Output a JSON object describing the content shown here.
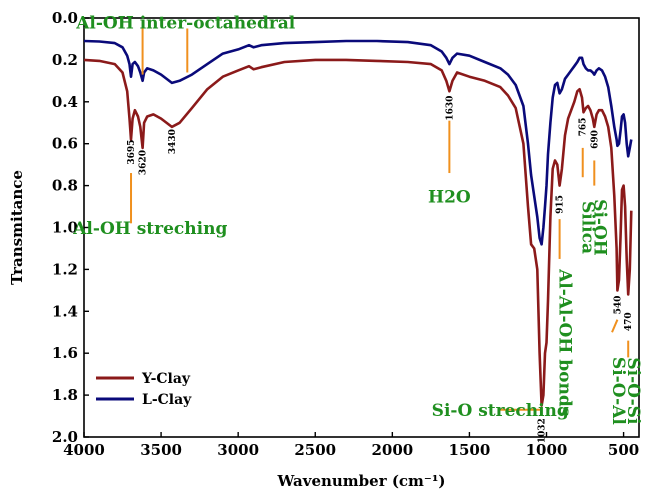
{
  "chart_data": {
    "type": "line",
    "xlabel": "Wavenumber (cm⁻¹)",
    "ylabel": "Transmitance",
    "xlim": [
      4000,
      400
    ],
    "ylim": [
      0.0,
      2.0
    ],
    "x_ticks": [
      4000,
      3500,
      3000,
      2500,
      2000,
      1500,
      1000,
      500
    ],
    "y_ticks": [
      "0.0",
      "0.2",
      "0.4",
      "0.6",
      "0.8",
      "1.0",
      "1.2",
      "1.4",
      "1.6",
      "1.8",
      "2.0"
    ],
    "grid": false,
    "legend_position": "bottom-left",
    "series": [
      {
        "name": "Y-Clay",
        "color": "#8b1a1a",
        "points": [
          [
            4000,
            0.2
          ],
          [
            3900,
            0.205
          ],
          [
            3800,
            0.22
          ],
          [
            3750,
            0.26
          ],
          [
            3720,
            0.35
          ],
          [
            3705,
            0.48
          ],
          [
            3695,
            0.58
          ],
          [
            3685,
            0.48
          ],
          [
            3670,
            0.44
          ],
          [
            3650,
            0.47
          ],
          [
            3635,
            0.52
          ],
          [
            3620,
            0.62
          ],
          [
            3610,
            0.5
          ],
          [
            3590,
            0.47
          ],
          [
            3550,
            0.46
          ],
          [
            3500,
            0.48
          ],
          [
            3430,
            0.52
          ],
          [
            3380,
            0.5
          ],
          [
            3300,
            0.43
          ],
          [
            3200,
            0.34
          ],
          [
            3100,
            0.28
          ],
          [
            3000,
            0.25
          ],
          [
            2930,
            0.23
          ],
          [
            2900,
            0.245
          ],
          [
            2850,
            0.235
          ],
          [
            2700,
            0.21
          ],
          [
            2500,
            0.2
          ],
          [
            2300,
            0.2
          ],
          [
            2100,
            0.205
          ],
          [
            1900,
            0.21
          ],
          [
            1750,
            0.22
          ],
          [
            1680,
            0.25
          ],
          [
            1650,
            0.3
          ],
          [
            1630,
            0.35
          ],
          [
            1610,
            0.3
          ],
          [
            1580,
            0.26
          ],
          [
            1500,
            0.28
          ],
          [
            1400,
            0.3
          ],
          [
            1300,
            0.33
          ],
          [
            1250,
            0.37
          ],
          [
            1200,
            0.43
          ],
          [
            1150,
            0.6
          ],
          [
            1120,
            0.9
          ],
          [
            1100,
            1.08
          ],
          [
            1080,
            1.1
          ],
          [
            1060,
            1.2
          ],
          [
            1045,
            1.6
          ],
          [
            1032,
            1.85
          ],
          [
            1020,
            1.8
          ],
          [
            1010,
            1.6
          ],
          [
            1000,
            1.55
          ],
          [
            990,
            1.35
          ],
          [
            975,
            0.95
          ],
          [
            960,
            0.72
          ],
          [
            945,
            0.68
          ],
          [
            930,
            0.7
          ],
          [
            915,
            0.8
          ],
          [
            900,
            0.72
          ],
          [
            880,
            0.56
          ],
          [
            860,
            0.48
          ],
          [
            840,
            0.44
          ],
          [
            820,
            0.4
          ],
          [
            800,
            0.35
          ],
          [
            785,
            0.34
          ],
          [
            770,
            0.38
          ],
          [
            760,
            0.45
          ],
          [
            745,
            0.43
          ],
          [
            730,
            0.42
          ],
          [
            715,
            0.44
          ],
          [
            700,
            0.48
          ],
          [
            690,
            0.52
          ],
          [
            675,
            0.46
          ],
          [
            660,
            0.44
          ],
          [
            640,
            0.44
          ],
          [
            620,
            0.47
          ],
          [
            600,
            0.52
          ],
          [
            580,
            0.62
          ],
          [
            560,
            0.85
          ],
          [
            545,
            1.1
          ],
          [
            540,
            1.3
          ],
          [
            530,
            1.25
          ],
          [
            520,
            1.05
          ],
          [
            510,
            0.82
          ],
          [
            500,
            0.8
          ],
          [
            490,
            0.9
          ],
          [
            480,
            1.15
          ],
          [
            470,
            1.32
          ],
          [
            460,
            1.2
          ],
          [
            450,
            0.92
          ]
        ]
      },
      {
        "name": "L-Clay",
        "color": "#0a0a7a",
        "points": [
          [
            4000,
            0.11
          ],
          [
            3900,
            0.112
          ],
          [
            3800,
            0.12
          ],
          [
            3750,
            0.14
          ],
          [
            3720,
            0.18
          ],
          [
            3705,
            0.22
          ],
          [
            3695,
            0.28
          ],
          [
            3685,
            0.22
          ],
          [
            3670,
            0.21
          ],
          [
            3650,
            0.23
          ],
          [
            3635,
            0.26
          ],
          [
            3620,
            0.3
          ],
          [
            3610,
            0.26
          ],
          [
            3590,
            0.24
          ],
          [
            3550,
            0.25
          ],
          [
            3500,
            0.27
          ],
          [
            3430,
            0.31
          ],
          [
            3380,
            0.3
          ],
          [
            3300,
            0.27
          ],
          [
            3200,
            0.22
          ],
          [
            3100,
            0.17
          ],
          [
            3000,
            0.15
          ],
          [
            2930,
            0.13
          ],
          [
            2900,
            0.14
          ],
          [
            2850,
            0.13
          ],
          [
            2700,
            0.12
          ],
          [
            2500,
            0.115
          ],
          [
            2300,
            0.11
          ],
          [
            2100,
            0.11
          ],
          [
            1900,
            0.115
          ],
          [
            1750,
            0.13
          ],
          [
            1680,
            0.16
          ],
          [
            1650,
            0.19
          ],
          [
            1630,
            0.22
          ],
          [
            1610,
            0.19
          ],
          [
            1580,
            0.17
          ],
          [
            1500,
            0.18
          ],
          [
            1400,
            0.21
          ],
          [
            1300,
            0.24
          ],
          [
            1250,
            0.27
          ],
          [
            1200,
            0.32
          ],
          [
            1150,
            0.42
          ],
          [
            1120,
            0.6
          ],
          [
            1100,
            0.75
          ],
          [
            1080,
            0.85
          ],
          [
            1060,
            0.95
          ],
          [
            1045,
            1.05
          ],
          [
            1032,
            1.08
          ],
          [
            1020,
            1.0
          ],
          [
            1010,
            0.9
          ],
          [
            1000,
            0.8
          ],
          [
            990,
            0.65
          ],
          [
            975,
            0.5
          ],
          [
            960,
            0.38
          ],
          [
            945,
            0.32
          ],
          [
            930,
            0.31
          ],
          [
            915,
            0.36
          ],
          [
            900,
            0.34
          ],
          [
            880,
            0.29
          ],
          [
            860,
            0.27
          ],
          [
            840,
            0.25
          ],
          [
            820,
            0.23
          ],
          [
            800,
            0.21
          ],
          [
            785,
            0.19
          ],
          [
            770,
            0.19
          ],
          [
            760,
            0.22
          ],
          [
            745,
            0.24
          ],
          [
            730,
            0.25
          ],
          [
            715,
            0.25
          ],
          [
            700,
            0.26
          ],
          [
            690,
            0.27
          ],
          [
            675,
            0.25
          ],
          [
            660,
            0.24
          ],
          [
            640,
            0.25
          ],
          [
            620,
            0.28
          ],
          [
            600,
            0.33
          ],
          [
            580,
            0.42
          ],
          [
            560,
            0.52
          ],
          [
            545,
            0.58
          ],
          [
            540,
            0.61
          ],
          [
            530,
            0.6
          ],
          [
            520,
            0.54
          ],
          [
            510,
            0.47
          ],
          [
            500,
            0.46
          ],
          [
            490,
            0.5
          ],
          [
            480,
            0.6
          ],
          [
            470,
            0.66
          ],
          [
            460,
            0.62
          ],
          [
            450,
            0.58
          ]
        ]
      }
    ],
    "peak_labels": [
      {
        "text": "3695",
        "x": 3695,
        "y": 0.64
      },
      {
        "text": "3620",
        "x": 3620,
        "y": 0.69
      },
      {
        "text": "3430",
        "x": 3430,
        "y": 0.59
      },
      {
        "text": "1630",
        "x": 1630,
        "y": 0.43
      },
      {
        "text": "1032",
        "x": 1032,
        "y": 1.97
      },
      {
        "text": "915",
        "x": 915,
        "y": 0.89
      },
      {
        "text": "765",
        "x": 765,
        "y": 0.52
      },
      {
        "text": "690",
        "x": 690,
        "y": 0.58
      },
      {
        "text": "540",
        "x": 540,
        "y": 1.37
      },
      {
        "text": "470",
        "x": 470,
        "y": 1.45
      }
    ],
    "annotations": [
      {
        "text": "Al-OH inter-octahedral",
        "x": 3340,
        "y": 0.05,
        "orient": "h"
      },
      {
        "text": "Al-OH streching",
        "x": 3570,
        "y": 1.03,
        "orient": "h"
      },
      {
        "text": "H2O",
        "x": 1630,
        "y": 0.88,
        "orient": "h"
      },
      {
        "text": "Si-O streching",
        "x": 1300,
        "y": 1.9,
        "orient": "h"
      },
      {
        "text": "Silica",
        "x": 765,
        "y": 1.0,
        "orient": "v"
      },
      {
        "text": "Si-OH",
        "x": 690,
        "y": 1.0,
        "orient": "v"
      },
      {
        "text": "Al-Al-OH bonds",
        "x": 915,
        "y": 1.55,
        "orient": "v"
      },
      {
        "text": "Si-O-Al",
        "x": 570,
        "y": 1.78,
        "orient": "v"
      },
      {
        "text": "Si-O-Si",
        "x": 470,
        "y": 1.78,
        "orient": "v"
      }
    ]
  }
}
